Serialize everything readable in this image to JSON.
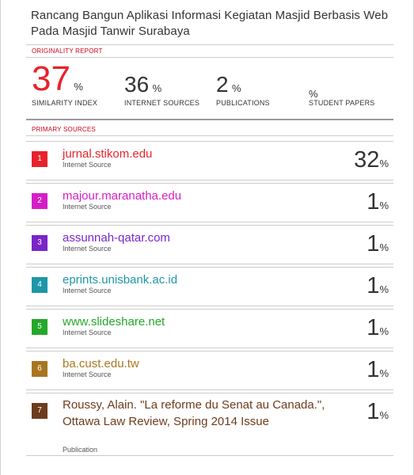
{
  "document": {
    "title": "Rancang Bangun Aplikasi Informasi Kegiatan Masjid Berbasis Web Pada Masjid Tanwir Surabaya"
  },
  "originality_report": {
    "section_label": "ORIGINALITY REPORT",
    "similarity": {
      "value": "37",
      "unit": "%",
      "label": "SIMILARITY INDEX"
    },
    "internet": {
      "value": "36",
      "unit": "%",
      "label": "INTERNET SOURCES"
    },
    "publications": {
      "value": "2",
      "unit": "%",
      "label": "PUBLICATIONS"
    },
    "students": {
      "value": "",
      "unit": "%",
      "label": "STUDENT PAPERS"
    }
  },
  "primary_sources": {
    "section_label": "PRIMARY SOURCES",
    "items": [
      {
        "rank": "1",
        "name": "jurnal.stikom.edu",
        "type": "Internet Source",
        "percent": "32",
        "unit": "%",
        "color": "#e8222b"
      },
      {
        "rank": "2",
        "name": "majour.maranatha.edu",
        "type": "Internet Source",
        "percent": "1",
        "unit": "%",
        "color": "#d51ec7"
      },
      {
        "rank": "3",
        "name": "assunnah-qatar.com",
        "type": "Internet Source",
        "percent": "1",
        "unit": "%",
        "color": "#7a25c9"
      },
      {
        "rank": "4",
        "name": "eprints.unisbank.ac.id",
        "type": "Internet Source",
        "percent": "1",
        "unit": "%",
        "color": "#1d97a8"
      },
      {
        "rank": "5",
        "name": "www.slideshare.net",
        "type": "Internet Source",
        "percent": "1",
        "unit": "%",
        "color": "#23a82a"
      },
      {
        "rank": "6",
        "name": "ba.cust.edu.tw",
        "type": "Internet Source",
        "percent": "1",
        "unit": "%",
        "color": "#a9761f"
      },
      {
        "rank": "7",
        "name": "Roussy, Alain. \"La reforme du Senat au Canada.\", Ottawa Law Review, Spring 2014 Issue",
        "type": "Publication",
        "percent": "1",
        "unit": "%",
        "color": "#6d3c1d"
      }
    ]
  }
}
